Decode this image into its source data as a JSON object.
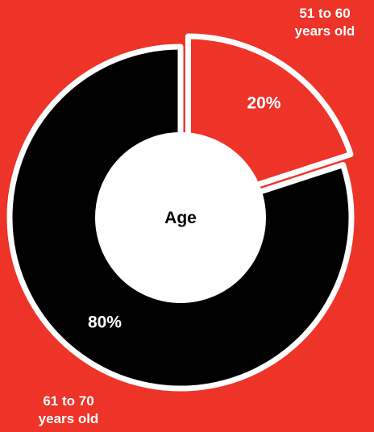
{
  "chart_data": {
    "type": "pie",
    "title": "Age",
    "categories": [
      "51 to 60 years old",
      "61 to 70 years old"
    ],
    "legend_lines": [
      [
        "51 to 60",
        "years old"
      ],
      [
        "61 to 70",
        "years old"
      ]
    ],
    "values": [
      20,
      80
    ],
    "value_labels": [
      "20%",
      "80%"
    ],
    "colors": [
      "#ee3328",
      "#000000"
    ],
    "exploded_slice": 0,
    "donut": true
  },
  "colors": {
    "background": "#ee3328",
    "outline": "#ffffff",
    "center": "#ffffff"
  }
}
